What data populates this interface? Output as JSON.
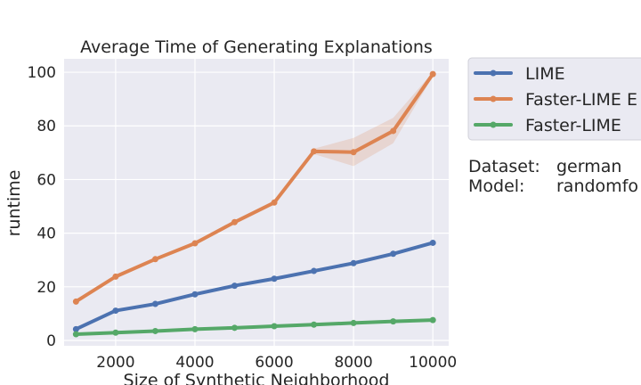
{
  "chart_data": {
    "type": "line",
    "title": "Average Time of Generating Explanations",
    "xlabel": "Size of Synthetic Neighborhood",
    "ylabel": "runtime",
    "xlim": [
      700,
      10400
    ],
    "ylim": [
      -2,
      105
    ],
    "x_ticks": [
      2000,
      4000,
      6000,
      8000,
      10000
    ],
    "y_ticks": [
      0,
      20,
      40,
      60,
      80,
      100
    ],
    "grid": true,
    "legend_placement": "outside-right",
    "x": [
      1000,
      2000,
      3000,
      4000,
      5000,
      6000,
      7000,
      8000,
      9000,
      10000
    ],
    "series": [
      {
        "name": "LIME",
        "color": "#4c72b0",
        "values": [
          4.2,
          11.1,
          13.6,
          17.2,
          20.4,
          23.0,
          25.9,
          28.8,
          32.3,
          36.4
        ]
      },
      {
        "name": "Faster-LIME E",
        "color": "#dd8452",
        "values": [
          14.5,
          23.8,
          30.3,
          36.2,
          44.1,
          51.4,
          70.5,
          70.2,
          78.1,
          99.3
        ],
        "band_lower": [
          14.0,
          23.3,
          29.8,
          35.7,
          43.6,
          50.9,
          69.5,
          65.0,
          73.5,
          98.5
        ],
        "band_upper": [
          15.0,
          24.3,
          30.8,
          36.7,
          44.6,
          51.9,
          71.5,
          75.5,
          83.0,
          100.0
        ]
      },
      {
        "name": "Faster-LIME",
        "color": "#55a868",
        "values": [
          2.3,
          2.9,
          3.5,
          4.2,
          4.7,
          5.3,
          5.9,
          6.5,
          7.1,
          7.6
        ]
      }
    ]
  },
  "info": {
    "dataset_label": "Dataset:",
    "dataset_value": "german",
    "model_label": "Model:",
    "model_value": "randomfo"
  },
  "colors": {
    "plot_background": "#eaeaf2",
    "grid": "#ffffff",
    "legend_background": "#eaeaf2"
  }
}
